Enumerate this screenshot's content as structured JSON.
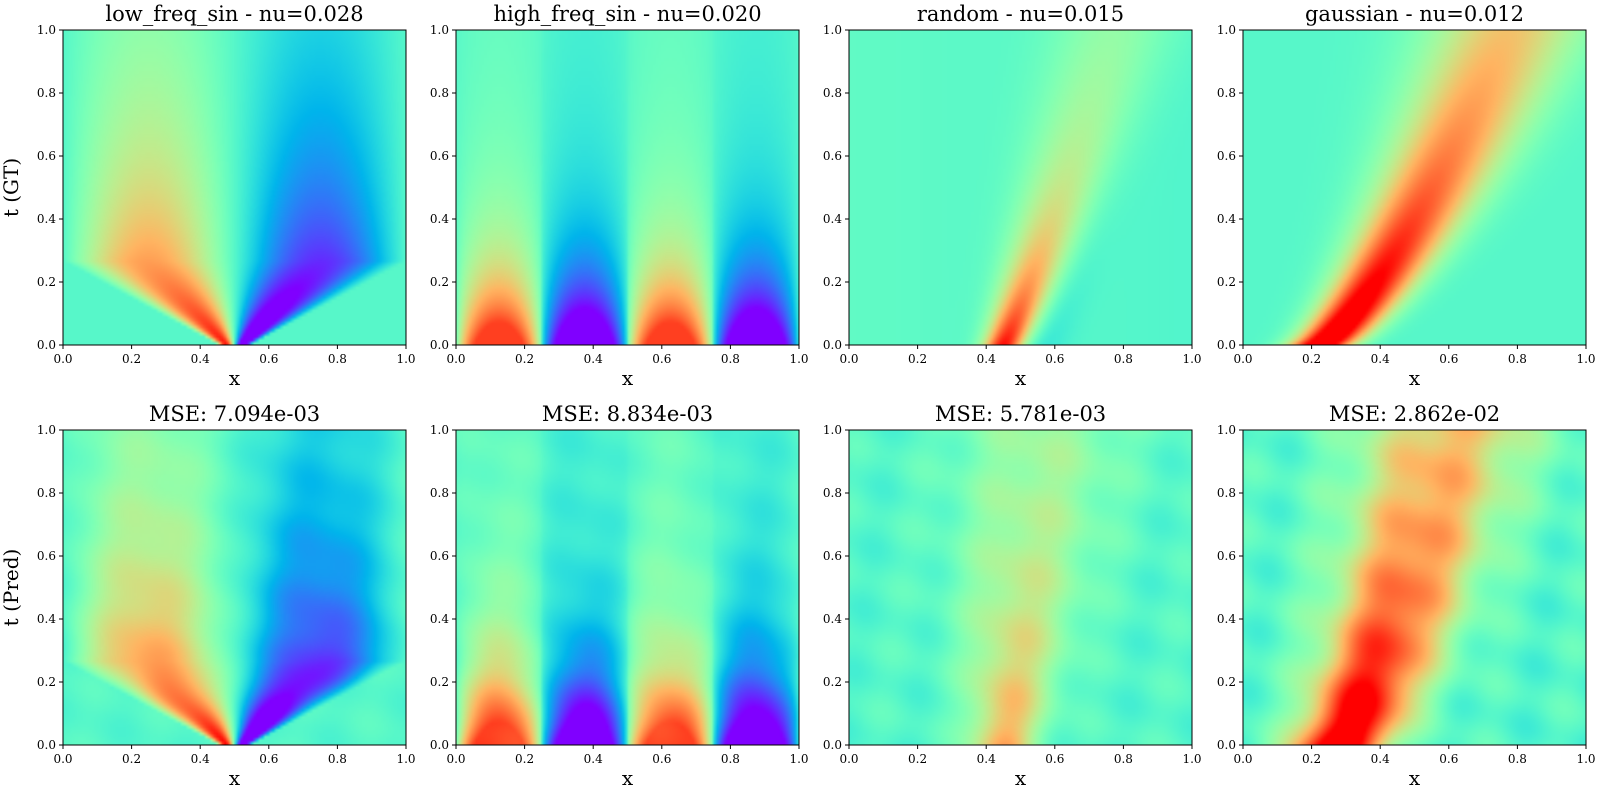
{
  "figure": {
    "row_labels": [
      "t (GT)",
      "t (Pred)"
    ],
    "x_label": "x"
  },
  "chart_data": [
    {
      "type": "heatmap",
      "row": 0,
      "col": 0,
      "title": "low_freq_sin - nu=0.028",
      "ylabel": "t (GT)",
      "xlabel": "x",
      "xlim": [
        0,
        1
      ],
      "ylim": [
        0,
        1
      ],
      "colormap": "rainbow",
      "initial_condition": "low_freq_sin",
      "nu": 0.028,
      "xticks": [
        "0.0",
        "0.2",
        "0.4",
        "0.6",
        "0.8",
        "1.0"
      ],
      "yticks": [
        "0.0",
        "0.2",
        "0.4",
        "0.6",
        "0.8",
        "1.0"
      ]
    },
    {
      "type": "heatmap",
      "row": 0,
      "col": 1,
      "title": "high_freq_sin - nu=0.020",
      "xlabel": "x",
      "xlim": [
        0,
        1
      ],
      "ylim": [
        0,
        1
      ],
      "colormap": "rainbow",
      "initial_condition": "high_freq_sin",
      "nu": 0.02,
      "xticks": [
        "0.0",
        "0.2",
        "0.4",
        "0.6",
        "0.8",
        "1.0"
      ],
      "yticks": [
        "0.0",
        "0.2",
        "0.4",
        "0.6",
        "0.8",
        "1.0"
      ]
    },
    {
      "type": "heatmap",
      "row": 0,
      "col": 2,
      "title": "random - nu=0.015",
      "xlabel": "x",
      "xlim": [
        0,
        1
      ],
      "ylim": [
        0,
        1
      ],
      "colormap": "rainbow",
      "initial_condition": "random",
      "nu": 0.015,
      "xticks": [
        "0.0",
        "0.2",
        "0.4",
        "0.6",
        "0.8",
        "1.0"
      ],
      "yticks": [
        "0.0",
        "0.2",
        "0.4",
        "0.6",
        "0.8",
        "1.0"
      ]
    },
    {
      "type": "heatmap",
      "row": 0,
      "col": 3,
      "title": "gaussian - nu=0.012",
      "xlabel": "x",
      "xlim": [
        0,
        1
      ],
      "ylim": [
        0,
        1
      ],
      "colormap": "rainbow",
      "initial_condition": "gaussian",
      "nu": 0.012,
      "xticks": [
        "0.0",
        "0.2",
        "0.4",
        "0.6",
        "0.8",
        "1.0"
      ],
      "yticks": [
        "0.0",
        "0.2",
        "0.4",
        "0.6",
        "0.8",
        "1.0"
      ]
    },
    {
      "type": "heatmap",
      "row": 1,
      "col": 0,
      "title": "MSE: 7.094e-03",
      "ylabel": "t (Pred)",
      "xlabel": "x",
      "xlim": [
        0,
        1
      ],
      "ylim": [
        0,
        1
      ],
      "colormap": "rainbow",
      "initial_condition": "low_freq_sin",
      "mse": 0.007094,
      "xticks": [
        "0.0",
        "0.2",
        "0.4",
        "0.6",
        "0.8",
        "1.0"
      ],
      "yticks": [
        "0.0",
        "0.2",
        "0.4",
        "0.6",
        "0.8",
        "1.0"
      ]
    },
    {
      "type": "heatmap",
      "row": 1,
      "col": 1,
      "title": "MSE: 8.834e-03",
      "xlabel": "x",
      "xlim": [
        0,
        1
      ],
      "ylim": [
        0,
        1
      ],
      "colormap": "rainbow",
      "initial_condition": "high_freq_sin",
      "mse": 0.008834,
      "xticks": [
        "0.0",
        "0.2",
        "0.4",
        "0.6",
        "0.8",
        "1.0"
      ],
      "yticks": [
        "0.0",
        "0.2",
        "0.4",
        "0.6",
        "0.8",
        "1.0"
      ]
    },
    {
      "type": "heatmap",
      "row": 1,
      "col": 2,
      "title": "MSE: 5.781e-03",
      "xlabel": "x",
      "xlim": [
        0,
        1
      ],
      "ylim": [
        0,
        1
      ],
      "colormap": "rainbow",
      "initial_condition": "random",
      "mse": 0.005781,
      "xticks": [
        "0.0",
        "0.2",
        "0.4",
        "0.6",
        "0.8",
        "1.0"
      ],
      "yticks": [
        "0.0",
        "0.2",
        "0.4",
        "0.6",
        "0.8",
        "1.0"
      ]
    },
    {
      "type": "heatmap",
      "row": 1,
      "col": 3,
      "title": "MSE: 2.862e-02",
      "xlabel": "x",
      "xlim": [
        0,
        1
      ],
      "ylim": [
        0,
        1
      ],
      "colormap": "rainbow",
      "initial_condition": "gaussian",
      "mse": 0.02862,
      "xticks": [
        "0.0",
        "0.2",
        "0.4",
        "0.6",
        "0.8",
        "1.0"
      ],
      "yticks": [
        "0.0",
        "0.2",
        "0.4",
        "0.6",
        "0.8",
        "1.0"
      ]
    }
  ]
}
